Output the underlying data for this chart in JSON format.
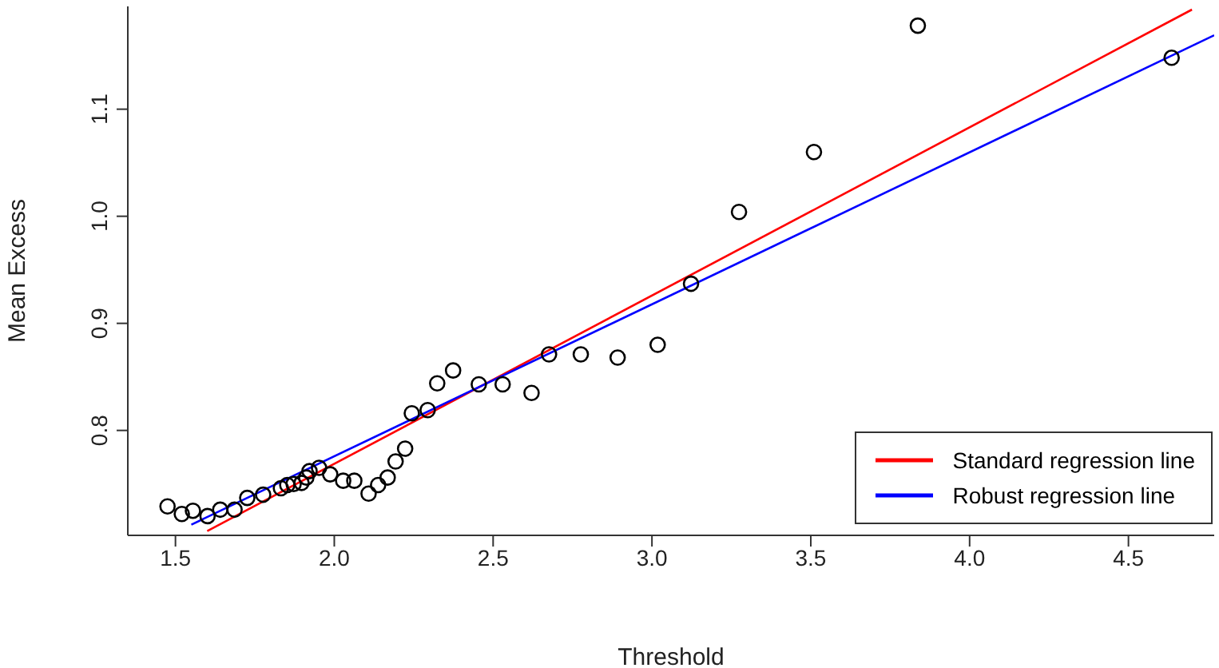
{
  "chart_data": {
    "type": "scatter",
    "xlabel": "Threshold",
    "ylabel": "Mean Excess",
    "xlim": [
      1.35,
      4.77
    ],
    "ylim": [
      0.702,
      1.196
    ],
    "xticks": [
      1.5,
      {
        "value": 2,
        "label": "2.0"
      },
      2.5,
      {
        "value": 3,
        "label": "3.0"
      },
      3.5,
      {
        "value": 4,
        "label": "4.0"
      },
      4.5
    ],
    "yticks": [
      0.8,
      0.9,
      {
        "value": 1,
        "label": "1.0"
      },
      1.1
    ],
    "marker": "circle",
    "legend": "bottom right",
    "series": [
      {
        "color": "#000000",
        "x": [
          1.475,
          1.52,
          1.555,
          1.601,
          1.641,
          1.686,
          1.726,
          1.776,
          1.832,
          1.852,
          1.872,
          1.897,
          1.912,
          1.922,
          1.952,
          1.987,
          2.028,
          2.063,
          2.108,
          2.138,
          2.168,
          2.193,
          2.223,
          2.244,
          2.294,
          2.324,
          2.374,
          2.455,
          2.53,
          2.621,
          2.676,
          2.776,
          2.892,
          3.018,
          3.123,
          3.274,
          3.51,
          3.837,
          4.636
        ],
        "values": [
          0.729,
          0.722,
          0.725,
          0.72,
          0.726,
          0.726,
          0.737,
          0.74,
          0.746,
          0.749,
          0.75,
          0.751,
          0.756,
          0.762,
          0.765,
          0.759,
          0.753,
          0.753,
          0.741,
          0.749,
          0.756,
          0.771,
          0.783,
          0.816,
          0.819,
          0.844,
          0.856,
          0.843,
          0.843,
          0.835,
          0.871,
          0.871,
          0.868,
          0.88,
          0.937,
          1.004,
          1.06,
          1.178,
          1.148
        ]
      },
      {
        "type": "line",
        "name": "Standard regression line",
        "color": "#ff0000",
        "marker": "none",
        "x": [
          1.6,
          4.7
        ],
        "values": [
          0.706,
          1.193
        ]
      },
      {
        "type": "line",
        "name": "Robust regression line",
        "color": "#0000ff",
        "marker": "none",
        "x": [
          1.55,
          4.77
        ],
        "values": [
          0.712,
          1.169
        ]
      }
    ]
  }
}
